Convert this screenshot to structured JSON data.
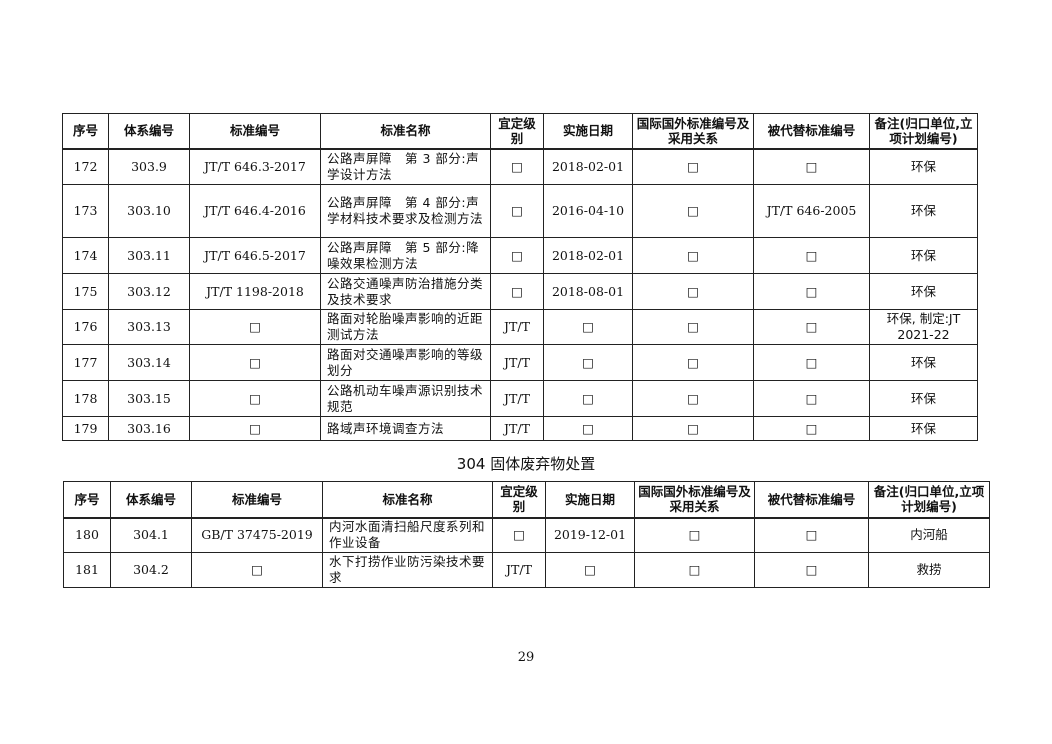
{
  "headers": [
    "序号",
    "体系编号",
    "标准编号",
    "标准名称",
    "宜定级别",
    "实施日期",
    "国际国外标准编号及采用关系",
    "被代替标准编号",
    "备注(归口单位,立项计划编号)"
  ],
  "table1": {
    "rows": [
      [
        "172",
        "303.9",
        "JT/T 646.3-2017",
        "公路声屏障　第 3 部分:声学设计方法",
        "□",
        "2018-02-01",
        "□",
        "□",
        "环保"
      ],
      [
        "173",
        "303.10",
        "JT/T 646.4-2016",
        "公路声屏障　第 4 部分:声学材料技术要求及检测方法",
        "□",
        "2016-04-10",
        "□",
        "JT/T 646-2005",
        "环保"
      ],
      [
        "174",
        "303.11",
        "JT/T 646.5-2017",
        "公路声屏障　第 5 部分:降噪效果检测方法",
        "□",
        "2018-02-01",
        "□",
        "□",
        "环保"
      ],
      [
        "175",
        "303.12",
        "JT/T 1198-2018",
        "公路交通噪声防治措施分类及技术要求",
        "□",
        "2018-08-01",
        "□",
        "□",
        "环保"
      ],
      [
        "176",
        "303.13",
        "□",
        "路面对轮胎噪声影响的近距测试方法",
        "JT/T",
        "□",
        "□",
        "□",
        "环保, 制定:JT 2021-22"
      ],
      [
        "177",
        "303.14",
        "□",
        "路面对交通噪声影响的等级划分",
        "JT/T",
        "□",
        "□",
        "□",
        "环保"
      ],
      [
        "178",
        "303.15",
        "□",
        "公路机动车噪声源识别技术规范",
        "JT/T",
        "□",
        "□",
        "□",
        "环保"
      ],
      [
        "179",
        "303.16",
        "□",
        "路域声环境调查方法",
        "JT/T",
        "□",
        "□",
        "□",
        "环保"
      ]
    ]
  },
  "section_title": "304  固体废弃物处置",
  "table2": {
    "rows": [
      [
        "180",
        "304.1",
        "GB/T 37475-2019",
        "内河水面清扫船尺度系列和作业设备",
        "□",
        "2019-12-01",
        "□",
        "□",
        "内河船"
      ],
      [
        "181",
        "304.2",
        "□",
        "水下打捞作业防污染技术要求",
        "JT/T",
        "□",
        "□",
        "□",
        "救捞"
      ]
    ]
  },
  "page_number": "29"
}
